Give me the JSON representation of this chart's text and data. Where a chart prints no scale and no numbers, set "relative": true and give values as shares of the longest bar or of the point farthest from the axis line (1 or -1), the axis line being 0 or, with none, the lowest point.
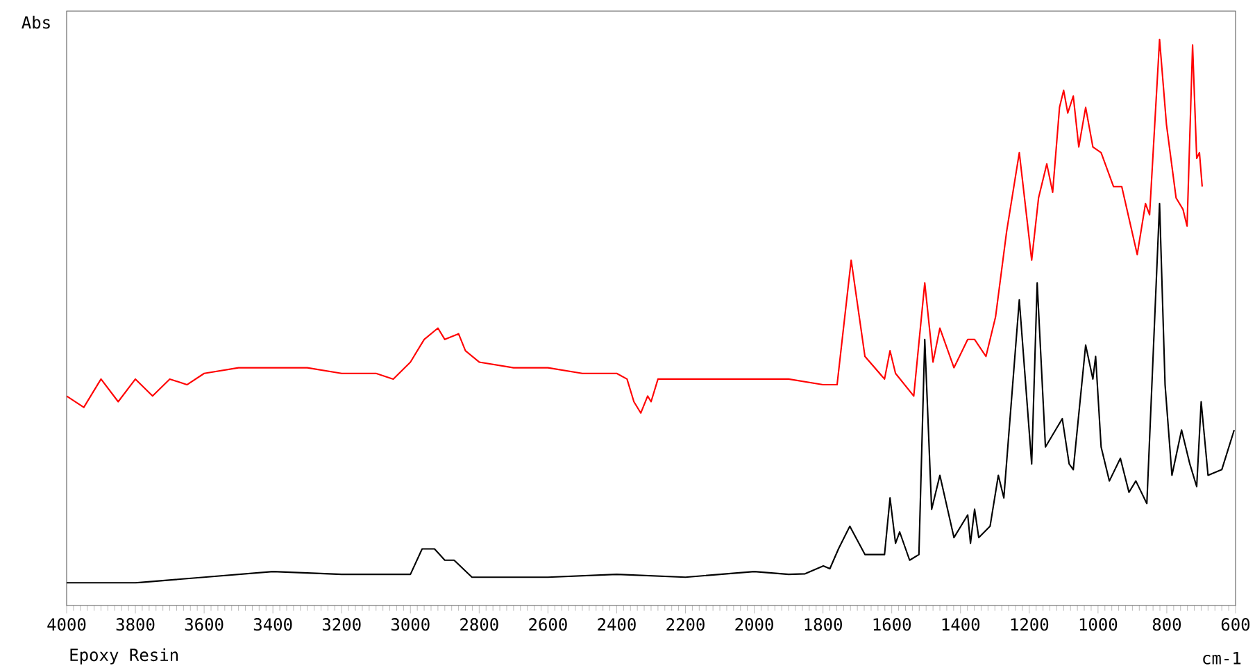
{
  "chart_data": {
    "type": "line",
    "relative": true,
    "xlabel": "cm-1",
    "ylabel": "Abs",
    "annotations": [
      "Epoxy Resin"
    ],
    "xlim": [
      4000,
      600
    ],
    "xticks": [
      4000,
      3800,
      3600,
      3400,
      3200,
      3000,
      2800,
      2600,
      2400,
      2200,
      2000,
      1800,
      1600,
      1400,
      1200,
      1000,
      800,
      600
    ],
    "series": [
      {
        "color": "#ff0000",
        "x": [
          4000,
          3950,
          3900,
          3850,
          3800,
          3750,
          3700,
          3650,
          3600,
          3500,
          3400,
          3300,
          3200,
          3100,
          3050,
          3000,
          2960,
          2920,
          2900,
          2860,
          2840,
          2800,
          2700,
          2600,
          2500,
          2400,
          2370,
          2350,
          2330,
          2310,
          2300,
          2280,
          2200,
          2000,
          1900,
          1800,
          1759,
          1718,
          1678,
          1621,
          1605,
          1589,
          1536,
          1504,
          1480,
          1460,
          1419,
          1379,
          1359,
          1326,
          1298,
          1266,
          1229,
          1193,
          1173,
          1149,
          1132,
          1112,
          1100,
          1088,
          1072,
          1056,
          1036,
          1015,
          991,
          955,
          931,
          886,
          862,
          850,
          821,
          801,
          773,
          753,
          741,
          725,
          713,
          705,
          697
        ],
        "values": [
          0.37,
          0.35,
          0.4,
          0.36,
          0.4,
          0.37,
          0.4,
          0.39,
          0.41,
          0.42,
          0.42,
          0.42,
          0.41,
          0.41,
          0.4,
          0.43,
          0.47,
          0.49,
          0.47,
          0.48,
          0.45,
          0.43,
          0.42,
          0.42,
          0.41,
          0.41,
          0.4,
          0.36,
          0.34,
          0.37,
          0.36,
          0.4,
          0.4,
          0.4,
          0.4,
          0.39,
          0.39,
          0.61,
          0.44,
          0.4,
          0.45,
          0.41,
          0.37,
          0.57,
          0.43,
          0.49,
          0.42,
          0.47,
          0.47,
          0.44,
          0.51,
          0.66,
          0.8,
          0.61,
          0.72,
          0.78,
          0.73,
          0.88,
          0.91,
          0.87,
          0.9,
          0.81,
          0.88,
          0.81,
          0.8,
          0.74,
          0.74,
          0.62,
          0.71,
          0.69,
          1.0,
          0.85,
          0.72,
          0.7,
          0.67,
          0.99,
          0.79,
          0.8,
          0.74
        ]
      },
      {
        "color": "#000000",
        "x": [
          4000,
          3800,
          3600,
          3400,
          3200,
          3000,
          2966,
          2930,
          2900,
          2873,
          2821,
          2600,
          2400,
          2200,
          2000,
          1900,
          1852,
          1799,
          1780,
          1755,
          1722,
          1678,
          1621,
          1605,
          1589,
          1577,
          1548,
          1521,
          1504,
          1484,
          1460,
          1419,
          1379,
          1371,
          1359,
          1347,
          1314,
          1290,
          1274,
          1229,
          1193,
          1177,
          1153,
          1104,
          1084,
          1072,
          1036,
          1015,
          1007,
          991,
          967,
          935,
          910,
          890,
          858,
          821,
          805,
          785,
          757,
          733,
          713,
          700,
          680,
          640,
          604
        ],
        "values": [
          0.04,
          0.04,
          0.05,
          0.06,
          0.055,
          0.055,
          0.1,
          0.1,
          0.08,
          0.08,
          0.05,
          0.05,
          0.055,
          0.05,
          0.06,
          0.055,
          0.056,
          0.07,
          0.065,
          0.1,
          0.14,
          0.09,
          0.09,
          0.19,
          0.11,
          0.13,
          0.08,
          0.09,
          0.47,
          0.17,
          0.23,
          0.12,
          0.16,
          0.11,
          0.17,
          0.12,
          0.14,
          0.23,
          0.19,
          0.54,
          0.25,
          0.57,
          0.28,
          0.33,
          0.25,
          0.24,
          0.46,
          0.4,
          0.44,
          0.28,
          0.22,
          0.26,
          0.2,
          0.22,
          0.18,
          0.71,
          0.39,
          0.23,
          0.31,
          0.25,
          0.21,
          0.36,
          0.23,
          0.24,
          0.31
        ]
      }
    ]
  }
}
